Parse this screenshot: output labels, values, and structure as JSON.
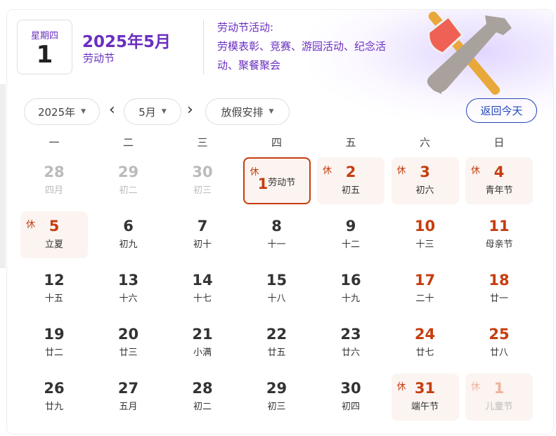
{
  "header": {
    "weekday": "星期四",
    "day": "1",
    "year_month": "2025年5月",
    "festival": "劳动节",
    "activity_title": "劳动节活动:",
    "activity_text": "劳模表彰、竞赛、游园活动、纪念活动、聚餐聚会",
    "illustration": "axe-and-wrench-icon"
  },
  "toolbar": {
    "year": "2025年",
    "month": "5月",
    "holiday": "放假安排",
    "today_button": "返回今天",
    "prev": "‹",
    "next": "›"
  },
  "weekdays": [
    "一",
    "二",
    "三",
    "四",
    "五",
    "六",
    "日"
  ],
  "rest_label": "休",
  "colors": {
    "accent": "#6a2fc0",
    "holiday_red": "#c63d10",
    "button_blue": "#2649b8"
  },
  "days": [
    {
      "d": "28",
      "s": "四月",
      "dim": true
    },
    {
      "d": "29",
      "s": "初二",
      "dim": true
    },
    {
      "d": "30",
      "s": "初三",
      "dim": true
    },
    {
      "d": "1",
      "s": "劳动节",
      "rest": true,
      "red": true,
      "today": true
    },
    {
      "d": "2",
      "s": "初五",
      "rest": true,
      "red": true
    },
    {
      "d": "3",
      "s": "初六",
      "rest": true,
      "red": true
    },
    {
      "d": "4",
      "s": "青年节",
      "rest": true,
      "red": true
    },
    {
      "d": "5",
      "s": "立夏",
      "rest": true,
      "red": true
    },
    {
      "d": "6",
      "s": "初九"
    },
    {
      "d": "7",
      "s": "初十"
    },
    {
      "d": "8",
      "s": "十一"
    },
    {
      "d": "9",
      "s": "十二"
    },
    {
      "d": "10",
      "s": "十三",
      "red": true
    },
    {
      "d": "11",
      "s": "母亲节",
      "red": true
    },
    {
      "d": "12",
      "s": "十五"
    },
    {
      "d": "13",
      "s": "十六"
    },
    {
      "d": "14",
      "s": "十七"
    },
    {
      "d": "15",
      "s": "十八"
    },
    {
      "d": "16",
      "s": "十九"
    },
    {
      "d": "17",
      "s": "二十",
      "red": true
    },
    {
      "d": "18",
      "s": "廿一",
      "red": true
    },
    {
      "d": "19",
      "s": "廿二"
    },
    {
      "d": "20",
      "s": "廿三"
    },
    {
      "d": "21",
      "s": "小满"
    },
    {
      "d": "22",
      "s": "廿五"
    },
    {
      "d": "23",
      "s": "廿六"
    },
    {
      "d": "24",
      "s": "廿七",
      "red": true
    },
    {
      "d": "25",
      "s": "廿八",
      "red": true
    },
    {
      "d": "26",
      "s": "廿九"
    },
    {
      "d": "27",
      "s": "五月"
    },
    {
      "d": "28",
      "s": "初二"
    },
    {
      "d": "29",
      "s": "初三"
    },
    {
      "d": "30",
      "s": "初四"
    },
    {
      "d": "31",
      "s": "端午节",
      "rest": true,
      "red": true
    },
    {
      "d": "1",
      "s": "儿童节",
      "rest": true,
      "dim": true
    }
  ]
}
